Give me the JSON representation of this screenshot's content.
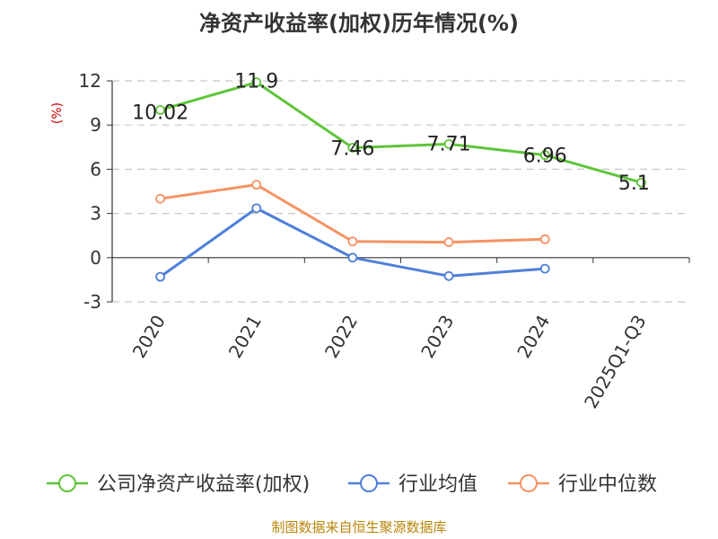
{
  "chart_data": {
    "type": "line",
    "title": "净资产收益率(加权)历年情况(%)",
    "ylabel": "(%)",
    "xlabel": "",
    "categories": [
      "2020",
      "2021",
      "2022",
      "2023",
      "2024",
      "2025Q1-Q3"
    ],
    "ylim": [
      -3,
      12
    ],
    "yticks": [
      -3,
      0,
      3,
      6,
      9,
      12
    ],
    "grid": true,
    "legend_position": "bottom",
    "series": [
      {
        "name": "公司净资产收益率(加权)",
        "color": "#5ec53a",
        "values": [
          10.02,
          11.9,
          7.46,
          7.71,
          6.96,
          5.1
        ],
        "labels": [
          "10.02",
          "11.9",
          "7.46",
          "7.71",
          "6.96",
          "5.1"
        ]
      },
      {
        "name": "行业均值",
        "color": "#4e7fd8",
        "values": [
          -1.3,
          3.35,
          0.0,
          -1.25,
          -0.75,
          null
        ]
      },
      {
        "name": "行业中位数",
        "color": "#f59262",
        "values": [
          4.0,
          4.95,
          1.1,
          1.05,
          1.25,
          null
        ]
      }
    ]
  },
  "source": "制图数据来自恒生聚源数据库"
}
